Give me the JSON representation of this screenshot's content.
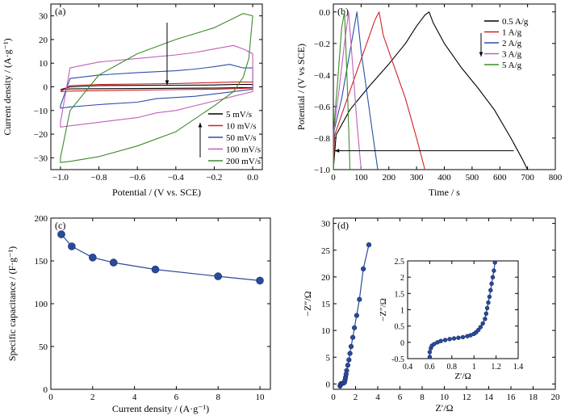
{
  "figure": {
    "background": "#ffffff",
    "axis_color": "#000000"
  },
  "chart_data": [
    {
      "id": "a",
      "type": "line",
      "panel_label": "(a)",
      "xlabel": "Potential / (V vs. SCE)",
      "ylabel": "Current density / (A·g⁻¹)",
      "xlim": [
        -1.05,
        0.05
      ],
      "ylim": [
        -35,
        35
      ],
      "xticks": [
        -1.0,
        -0.8,
        -0.6,
        -0.4,
        -0.2,
        0.0
      ],
      "xtick_labels": [
        "−1.0",
        "−0.8",
        "−0.6",
        "−0.4",
        "−0.2",
        "0.0"
      ],
      "yticks": [
        -30,
        -20,
        -10,
        0,
        10,
        20,
        30
      ],
      "ytick_labels": [
        "−30",
        "−20",
        "−10",
        "0",
        "10",
        "20",
        "30"
      ],
      "legend_position": "bottom-right",
      "series": [
        {
          "name": "5 mV/s",
          "color": "#000000",
          "x": [
            -1.0,
            -0.95,
            -0.8,
            -0.6,
            -0.4,
            -0.2,
            -0.1,
            0.0,
            0.0,
            -0.1,
            -0.2,
            -0.4,
            -0.6,
            -0.8,
            -0.95,
            -1.0,
            -1.0
          ],
          "y": [
            -1.2,
            0.0,
            0.5,
            0.6,
            0.7,
            0.8,
            1.0,
            1.0,
            -0.3,
            -0.4,
            -0.5,
            -0.6,
            -0.7,
            -0.8,
            -0.9,
            -1.2,
            -1.2
          ]
        },
        {
          "name": "10 mV/s",
          "color": "#d42020",
          "x": [
            -1.0,
            -0.95,
            -0.8,
            -0.6,
            -0.4,
            -0.2,
            -0.1,
            0.0,
            0.0,
            -0.1,
            -0.2,
            -0.4,
            -0.6,
            -0.8,
            -0.95,
            -1.0,
            -1.0
          ],
          "y": [
            -2.0,
            0.5,
            1.0,
            1.2,
            1.4,
            1.8,
            2.0,
            2.0,
            -0.5,
            -0.8,
            -1.0,
            -1.2,
            -1.4,
            -1.6,
            -1.8,
            -2.0,
            -2.0
          ]
        },
        {
          "name": "50 mV/s",
          "color": "#2a50a8",
          "x": [
            -1.0,
            -0.95,
            -0.8,
            -0.6,
            -0.4,
            -0.3,
            -0.2,
            -0.12,
            -0.05,
            0.0,
            0.0,
            -0.1,
            -0.2,
            -0.3,
            -0.4,
            -0.5,
            -0.6,
            -0.8,
            -0.95,
            -1.0,
            -1.0
          ],
          "y": [
            -8.0,
            3.5,
            5.0,
            6.0,
            6.8,
            7.5,
            8.5,
            9.5,
            8.0,
            8.0,
            -1.0,
            -2.0,
            -3.0,
            -4.0,
            -4.5,
            -5.0,
            -6.5,
            -7.5,
            -8.5,
            -9.0,
            -8.0
          ]
        },
        {
          "name": "100 mV/s",
          "color": "#c060b8",
          "x": [
            -1.0,
            -0.95,
            -0.8,
            -0.6,
            -0.4,
            -0.3,
            -0.2,
            -0.1,
            -0.05,
            0.0,
            0.0,
            -0.1,
            -0.2,
            -0.3,
            -0.4,
            -0.5,
            -0.6,
            -0.8,
            -0.95,
            -1.0,
            -1.0
          ],
          "y": [
            -15.0,
            8.0,
            10.5,
            12.0,
            13.5,
            14.5,
            16.0,
            17.5,
            16.0,
            14.0,
            -2.0,
            -4.0,
            -6.0,
            -8.0,
            -10.0,
            -11.0,
            -13.0,
            -15.0,
            -16.5,
            -17.0,
            -15.0
          ]
        },
        {
          "name": "200 mV/s",
          "color": "#3d8a2c",
          "x": [
            -1.0,
            -0.95,
            -0.8,
            -0.6,
            -0.4,
            -0.2,
            -0.1,
            -0.05,
            0.0,
            -0.02,
            -0.05,
            -0.1,
            -0.2,
            -0.4,
            -0.6,
            -0.8,
            -0.95,
            -1.0,
            -1.0
          ],
          "y": [
            -30.0,
            -10.0,
            5.0,
            14.0,
            20.0,
            25.0,
            29.0,
            31.0,
            30.0,
            12.0,
            4.0,
            -2.0,
            -8.0,
            -19.0,
            -25.0,
            -29.5,
            -31.5,
            -32.0,
            -30.0
          ]
        }
      ]
    },
    {
      "id": "b",
      "type": "line",
      "panel_label": "(b)",
      "xlabel": "Time / s",
      "ylabel": "Potential / (V vs SCE)",
      "xlim": [
        0,
        800
      ],
      "ylim": [
        -1.0,
        0.05
      ],
      "xticks": [
        0,
        100,
        200,
        300,
        400,
        500,
        600,
        700,
        800
      ],
      "xtick_labels": [
        "0",
        "100",
        "200",
        "300",
        "400",
        "500",
        "600",
        "700",
        "800"
      ],
      "yticks": [
        -1.0,
        -0.8,
        -0.6,
        -0.4,
        -0.2,
        0.0
      ],
      "ytick_labels": [
        "−1.0",
        "−0.8",
        "−0.6",
        "−0.4",
        "−0.2",
        "0.0"
      ],
      "legend_position": "top-right",
      "series": [
        {
          "name": "0.5 A/g",
          "color": "#000000",
          "x": [
            0,
            10,
            60,
            130,
            200,
            260,
            300,
            330,
            345,
            360,
            400,
            460,
            520,
            580,
            640,
            680,
            700
          ],
          "y": [
            -1.0,
            -0.78,
            -0.62,
            -0.47,
            -0.33,
            -0.2,
            -0.09,
            -0.02,
            0.0,
            -0.07,
            -0.2,
            -0.35,
            -0.48,
            -0.62,
            -0.8,
            -0.93,
            -1.0
          ]
        },
        {
          "name": "1 A/g",
          "color": "#d42020",
          "x": [
            0,
            5,
            40,
            80,
            120,
            150,
            165,
            180,
            220,
            260,
            300,
            330
          ],
          "y": [
            -1.0,
            -0.78,
            -0.6,
            -0.4,
            -0.2,
            -0.05,
            0.0,
            -0.15,
            -0.35,
            -0.55,
            -0.8,
            -1.0
          ]
        },
        {
          "name": "2 A/g",
          "color": "#2a50a8",
          "x": [
            0,
            3,
            30,
            60,
            80,
            85,
            100,
            120,
            140,
            160
          ],
          "y": [
            -1.0,
            -0.75,
            -0.55,
            -0.25,
            -0.05,
            0.0,
            -0.25,
            -0.5,
            -0.75,
            -1.0
          ]
        },
        {
          "name": "3 A/g",
          "color": "#c060b8",
          "x": [
            0,
            2,
            20,
            40,
            55,
            70,
            85,
            100
          ],
          "y": [
            -1.0,
            -0.75,
            -0.5,
            -0.2,
            0.0,
            -0.35,
            -0.7,
            -1.0
          ]
        },
        {
          "name": "5 A/g",
          "color": "#3d8a2c",
          "x": [
            0,
            1,
            15,
            30,
            40,
            50,
            60
          ],
          "y": [
            -1.0,
            -0.75,
            -0.45,
            -0.1,
            0.0,
            -0.45,
            -1.0
          ]
        }
      ]
    },
    {
      "id": "c",
      "type": "scatter",
      "panel_label": "(c)",
      "xlabel": "Current density / (A·g⁻¹)",
      "ylabel": "Specific capacitance / (F·g⁻¹)",
      "xlim": [
        0,
        10.5
      ],
      "ylim": [
        0,
        200
      ],
      "xticks": [
        0,
        2,
        4,
        6,
        8,
        10
      ],
      "yticks": [
        0,
        50,
        100,
        150,
        200
      ],
      "series": [
        {
          "color": "#2a4a9a",
          "x": [
            0.5,
            1,
            2,
            3,
            5,
            8,
            10
          ],
          "y": [
            181,
            167,
            154,
            148,
            140,
            132,
            127
          ]
        }
      ]
    },
    {
      "id": "d",
      "type": "scatter",
      "panel_label": "(d)",
      "xlabel": "Z′/Ω",
      "ylabel": "−Z″/Ω",
      "xlim": [
        0,
        20
      ],
      "ylim": [
        -1,
        31
      ],
      "xticks": [
        0,
        2,
        4,
        6,
        8,
        10,
        12,
        14,
        16,
        18,
        20
      ],
      "yticks": [
        0,
        5,
        10,
        15,
        20,
        25,
        30
      ],
      "series": [
        {
          "color": "#2a4a9a",
          "x": [
            0.6,
            0.65,
            0.7,
            0.8,
            0.9,
            1.0,
            1.05,
            1.1,
            1.15,
            1.2,
            1.3,
            1.4,
            1.5,
            1.6,
            1.75,
            1.9,
            2.1,
            2.35,
            2.7,
            3.2
          ],
          "y": [
            -0.4,
            -0.1,
            0.05,
            0.1,
            0.15,
            0.3,
            0.7,
            1.2,
            1.8,
            2.5,
            3.5,
            4.5,
            5.7,
            7.0,
            8.7,
            10.5,
            12.8,
            15.8,
            21.5,
            26
          ]
        }
      ],
      "inset": {
        "xlabel": "Z′/Ω",
        "ylabel": "−Z″/Ω",
        "xlim": [
          0.4,
          1.4
        ],
        "ylim": [
          -0.5,
          2.5
        ],
        "xticks": [
          0.4,
          0.6,
          0.8,
          1.0,
          1.2,
          1.4
        ],
        "yticks": [
          -0.5,
          0.0,
          0.5,
          1.0,
          1.5,
          2.0,
          2.5
        ],
        "series": [
          {
            "color": "#2a4a9a",
            "x": [
              0.6,
              0.6,
              0.61,
              0.62,
              0.64,
              0.67,
              0.7,
              0.74,
              0.78,
              0.82,
              0.86,
              0.9,
              0.94,
              0.97,
              1.0,
              1.02,
              1.04,
              1.06,
              1.08,
              1.1,
              1.11,
              1.12,
              1.13,
              1.14,
              1.15,
              1.16,
              1.17,
              1.18,
              1.19
            ],
            "y": [
              -0.45,
              -0.3,
              -0.18,
              -0.1,
              -0.05,
              0.0,
              0.04,
              0.07,
              0.1,
              0.12,
              0.14,
              0.16,
              0.19,
              0.22,
              0.26,
              0.31,
              0.38,
              0.47,
              0.58,
              0.72,
              0.88,
              1.05,
              1.22,
              1.4,
              1.6,
              1.8,
              2.0,
              2.2,
              2.45
            ]
          }
        ]
      }
    }
  ]
}
